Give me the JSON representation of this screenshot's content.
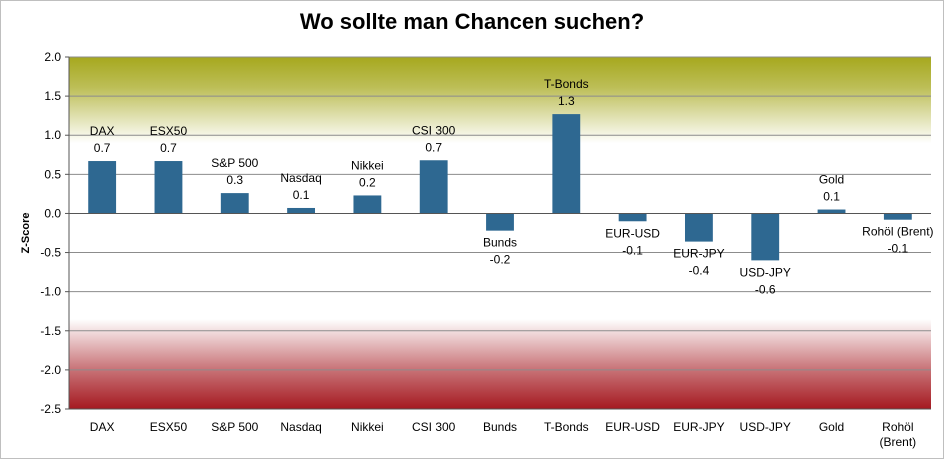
{
  "chart_data": {
    "type": "bar",
    "title": "Wo sollte man Chancen suchen?",
    "ylabel": "Z-Score",
    "xlabel": "",
    "ylim": [
      -2.5,
      2.0
    ],
    "yticks": [
      "2.0",
      "1.5",
      "1.0",
      "0.5",
      "0.0",
      "-0.5",
      "-1.0",
      "-1.5",
      "-2.0",
      "-2.5"
    ],
    "grid": true,
    "legend": "none",
    "categories": [
      "DAX",
      "ESX50",
      "S&P 500",
      "Nasdaq",
      "Nikkei",
      "CSI 300",
      "Bunds",
      "T-Bonds",
      "EUR-USD",
      "EUR-JPY",
      "USD-JPY",
      "Gold",
      "Rohöl (Brent)"
    ],
    "values": [
      0.67,
      0.67,
      0.26,
      0.07,
      0.23,
      0.68,
      -0.22,
      1.27,
      -0.1,
      -0.36,
      -0.6,
      0.05,
      -0.08
    ],
    "data_labels": [
      [
        "DAX",
        "0.7"
      ],
      [
        "ESX50",
        "0.7"
      ],
      [
        "S&P 500",
        "0.3"
      ],
      [
        "Nasdaq",
        "0.1"
      ],
      [
        "Nikkei",
        "0.2"
      ],
      [
        "CSI 300",
        "0.7"
      ],
      [
        "Bunds",
        "-0.2"
      ],
      [
        "T-Bonds",
        "1.3"
      ],
      [
        "EUR-USD",
        "-0.1"
      ],
      [
        "EUR-JPY",
        "-0.4"
      ],
      [
        "USD-JPY",
        "-0.6"
      ],
      [
        "Gold",
        "0.1"
      ],
      [
        "Rohöl (Brent)",
        "-0.1"
      ]
    ],
    "axis_labels": [
      [
        "DAX"
      ],
      [
        "ESX50"
      ],
      [
        "S&P 500"
      ],
      [
        "Nasdaq"
      ],
      [
        "Nikkei"
      ],
      [
        "CSI 300"
      ],
      [
        "Bunds"
      ],
      [
        "T-Bonds"
      ],
      [
        "EUR-USD"
      ],
      [
        "EUR-JPY"
      ],
      [
        "USD-JPY"
      ],
      [
        "Gold"
      ],
      [
        "Rohöl",
        "(Brent)"
      ]
    ],
    "colors": {
      "bar": "#2e6891",
      "band_positive": "#a6a81e",
      "band_negative": "#a51920",
      "grid": "#8c8c8c"
    }
  }
}
